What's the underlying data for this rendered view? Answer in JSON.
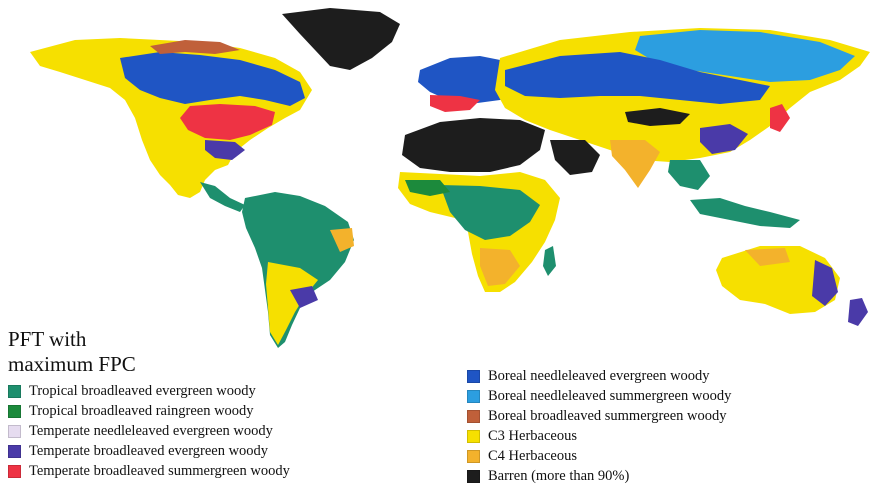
{
  "legend": {
    "title_line1": "PFT with",
    "title_line2": "maximum FPC",
    "left_items": [
      {
        "label": "Tropical broadleaved evergreen woody",
        "color": "#1e8f6e"
      },
      {
        "label": "Tropical broadleaved raingreen woody",
        "color": "#1c8a3c"
      },
      {
        "label": "Temperate needleleaved evergreen woody",
        "color": "#e6dcf0"
      },
      {
        "label": "Temperate broadleaved evergreen woody",
        "color": "#4a3aa8"
      },
      {
        "label": "Temperate broadleaved summergreen woody",
        "color": "#ee3344"
      }
    ],
    "right_items": [
      {
        "label": "Boreal needleleaved evergreen woody",
        "color": "#1f55c4"
      },
      {
        "label": "Boreal needleleaved summergreen woody",
        "color": "#2c9ee0"
      },
      {
        "label": "Boreal broadleaved summergreen woody",
        "color": "#c0603a"
      },
      {
        "label": "C3 Herbaceous",
        "color": "#f6e000"
      },
      {
        "label": "C4 Herbaceous",
        "color": "#f3b22c"
      },
      {
        "label": "Barren (more than 90%)",
        "color": "#1d1d1d"
      }
    ]
  }
}
